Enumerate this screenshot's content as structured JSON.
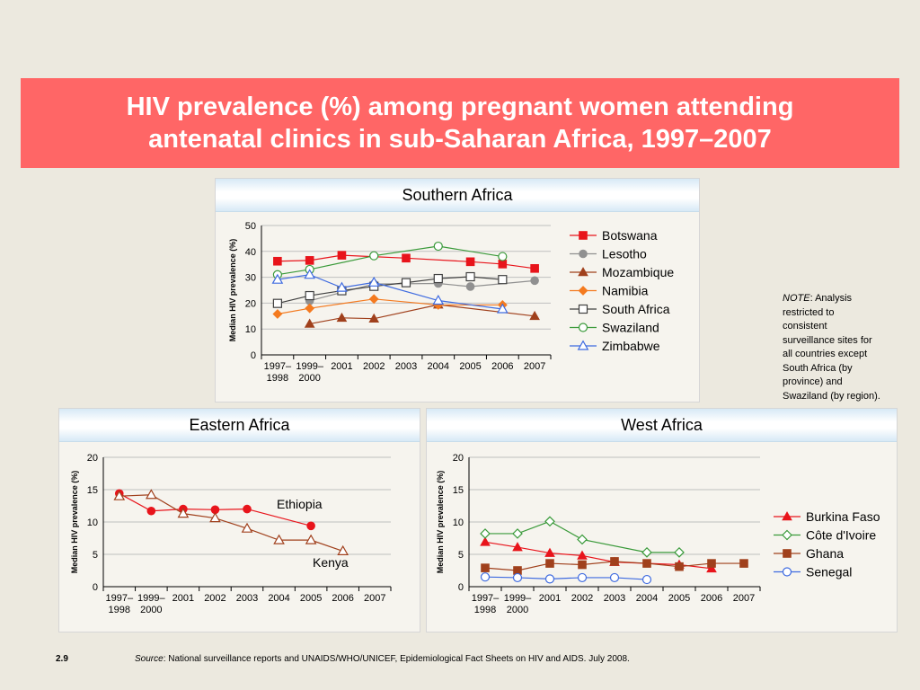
{
  "title": "HIV prevalence (%) among pregnant women attending antenatal clinics in sub-Saharan Africa, 1997–2007",
  "note": {
    "label": "NOTE",
    "text": ": Analysis restricted to consistent surveillance sites for all countries except South Africa (by province) and Swaziland (by region)."
  },
  "footer": {
    "slide_number": "2.9",
    "source_label": "Source",
    "source_text": ": National surveillance reports and UNAIDS/WHO/UNICEF, Epidemiological Fact Sheets on HIV and AIDS.  July 2008."
  },
  "chart_data": [
    {
      "panel": "Southern Africa",
      "type": "line",
      "title": "Southern Africa",
      "ylabel": "Median HIV prevalence (%)",
      "xlabel": "",
      "categories": [
        "1997–1998",
        "1999–2000",
        "2001",
        "2002",
        "2003",
        "2004",
        "2005",
        "2006",
        "2007"
      ],
      "ylim": [
        0,
        50
      ],
      "yticks": [
        "0",
        "10",
        "20",
        "30",
        "40",
        "50"
      ],
      "legend_position": "right",
      "series": [
        {
          "name": "Botswana",
          "color": "#E8141B",
          "marker": "square",
          "values": [
            36.2,
            36.5,
            38.5,
            null,
            37.4,
            null,
            36.0,
            35.1,
            33.4
          ]
        },
        {
          "name": "Lesotho",
          "color": "#909090",
          "marker": "circle",
          "values": [
            null,
            20.9,
            null,
            27.4,
            null,
            27.6,
            26.4,
            null,
            28.7
          ]
        },
        {
          "name": "Mozambique",
          "color": "#A0401C",
          "marker": "triangle",
          "values": [
            null,
            12.0,
            14.3,
            14.0,
            null,
            19.4,
            null,
            null,
            15.0
          ]
        },
        {
          "name": "Namibia",
          "color": "#F47A1F",
          "marker": "diamond",
          "values": [
            15.8,
            18.0,
            null,
            21.6,
            null,
            19.3,
            null,
            19.3,
            null
          ]
        },
        {
          "name": "South Africa",
          "color": "#404040",
          "marker": "open-square",
          "values": [
            19.9,
            22.9,
            24.8,
            26.5,
            27.9,
            29.5,
            30.2,
            29.1,
            null
          ]
        },
        {
          "name": "Swaziland",
          "color": "#3A9A3A",
          "marker": "open-circle",
          "values": [
            31.0,
            33.0,
            null,
            38.3,
            null,
            42.0,
            null,
            38.0,
            null
          ]
        },
        {
          "name": "Zimbabwe",
          "color": "#3F6BE0",
          "marker": "open-triangle",
          "values": [
            29.1,
            31.0,
            26.0,
            28.0,
            null,
            21.0,
            null,
            17.7,
            null
          ]
        }
      ]
    },
    {
      "panel": "Eastern Africa",
      "type": "line",
      "title": "Eastern Africa",
      "ylabel": "Median HIV prevalence (%)",
      "xlabel": "",
      "categories": [
        "1997–1998",
        "1999–2000",
        "2001",
        "2002",
        "2003",
        "2004",
        "2005",
        "2006",
        "2007"
      ],
      "ylim": [
        0,
        20
      ],
      "yticks": [
        "0",
        "5",
        "10",
        "15",
        "20"
      ],
      "series": [
        {
          "name": "Ethiopia",
          "color": "#E8141B",
          "marker": "circle",
          "values": [
            14.4,
            11.7,
            12.0,
            11.9,
            12.0,
            null,
            9.4,
            null,
            null
          ]
        },
        {
          "name": "Kenya",
          "color": "#A0401C",
          "marker": "open-triangle",
          "values": [
            14.0,
            14.2,
            11.3,
            10.6,
            9.0,
            7.2,
            7.2,
            5.5,
            null
          ]
        }
      ],
      "annotations": [
        "Ethiopia",
        "Kenya"
      ]
    },
    {
      "panel": "West Africa",
      "type": "line",
      "title": "West Africa",
      "ylabel": "Median HIV prevalence (%)",
      "xlabel": "",
      "categories": [
        "1997–1998",
        "1999–2000",
        "2001",
        "2002",
        "2003",
        "2004",
        "2005",
        "2006",
        "2007"
      ],
      "ylim": [
        0,
        20
      ],
      "yticks": [
        "0",
        "5",
        "10",
        "15",
        "20"
      ],
      "legend_position": "right",
      "series": [
        {
          "name": "Burkina Faso",
          "color": "#E8141B",
          "marker": "triangle",
          "values": [
            6.9,
            6.1,
            5.2,
            4.8,
            3.8,
            null,
            3.4,
            2.8,
            null
          ]
        },
        {
          "name": "Côte d'Ivoire",
          "color": "#3A9A3A",
          "marker": "open-diamond",
          "values": [
            8.2,
            8.2,
            10.1,
            7.3,
            null,
            5.3,
            5.3,
            null,
            null
          ]
        },
        {
          "name": "Ghana",
          "color": "#A0401C",
          "marker": "square",
          "values": [
            2.9,
            2.5,
            3.6,
            3.4,
            3.9,
            3.6,
            3.1,
            3.6,
            3.6
          ]
        },
        {
          "name": "Senegal",
          "color": "#3F6BE0",
          "marker": "open-circle",
          "values": [
            1.5,
            1.4,
            1.2,
            1.4,
            1.4,
            1.1,
            null,
            null,
            null
          ]
        }
      ]
    }
  ]
}
